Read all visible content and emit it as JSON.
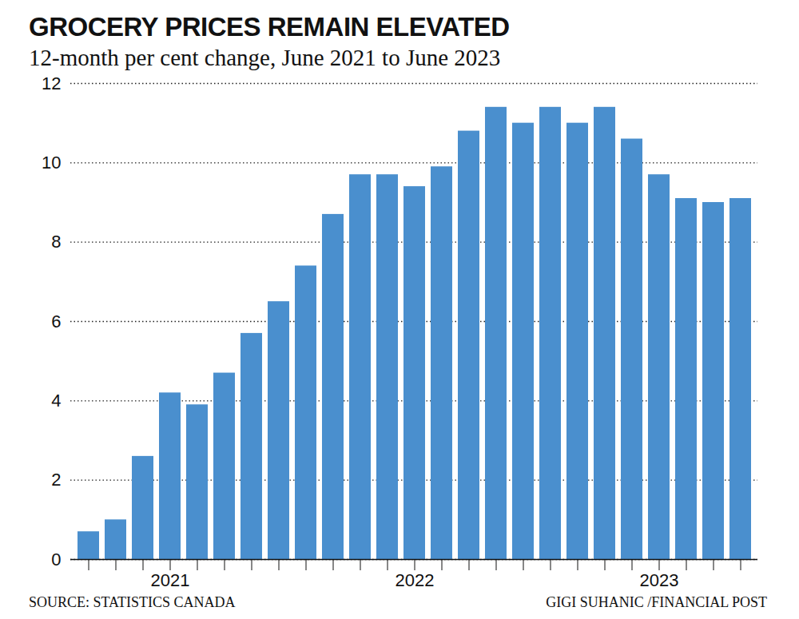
{
  "chart_data": {
    "type": "bar",
    "title": "GROCERY PRICES REMAIN ELEVATED",
    "subtitle": "12-month per cent change, June 2021 to June 2023",
    "source": "SOURCE: STATISTICS CANADA",
    "credit": "GIGI SUHANIC /FINANCIAL POST",
    "categories": [
      null,
      null,
      null,
      "2021",
      null,
      null,
      null,
      null,
      null,
      null,
      null,
      null,
      "2022",
      null,
      null,
      null,
      null,
      null,
      null,
      null,
      null,
      "2023",
      null,
      null,
      null
    ],
    "values": [
      0.7,
      1.0,
      2.6,
      4.2,
      3.9,
      4.7,
      5.7,
      6.5,
      7.4,
      8.7,
      9.7,
      9.7,
      9.4,
      9.9,
      10.8,
      11.4,
      11.0,
      11.4,
      11.0,
      11.4,
      10.6,
      9.7,
      9.1,
      9.0,
      9.1
    ],
    "color": "#4a8fce",
    "ylim": [
      0,
      12
    ],
    "yticks": [
      0,
      2,
      4,
      6,
      8,
      10,
      12
    ],
    "grid": true
  }
}
